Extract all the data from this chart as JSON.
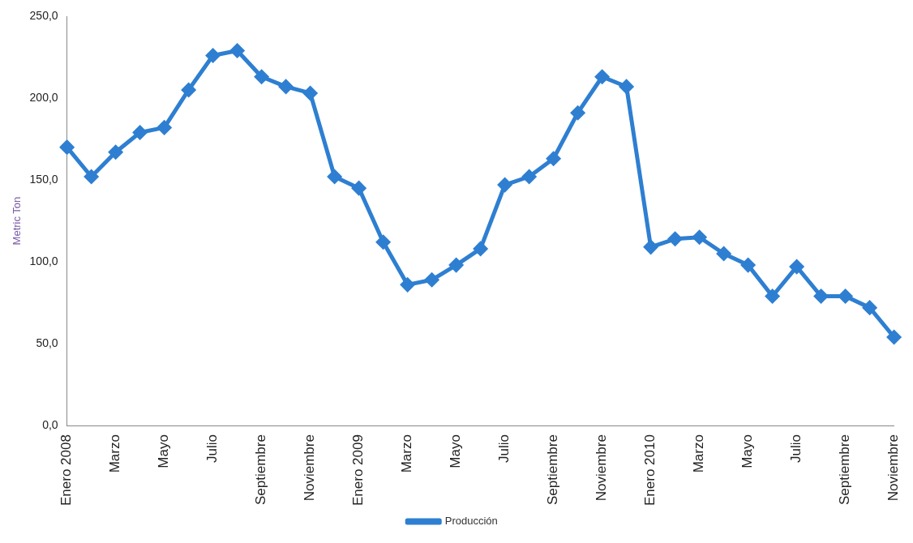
{
  "chart_data": {
    "type": "line",
    "ylabel": "Metric Ton",
    "categories": [
      "Enero 2008",
      null,
      "Marzo",
      null,
      "Mayo",
      null,
      "Julio",
      null,
      "Septiembre",
      null,
      "Noviembre",
      null,
      "Enero 2009",
      null,
      "Marzo",
      null,
      "Mayo",
      null,
      "Julio",
      null,
      "Septiembre",
      null,
      "Noviembre",
      null,
      "Enero 2010",
      null,
      "Marzo",
      null,
      "Mayo",
      null,
      "Julio",
      null,
      "Septiembre",
      null,
      "Noviembre"
    ],
    "series": [
      {
        "name": "Producción",
        "color": "#2e7fd1",
        "values": [
          170,
          152,
          167,
          179,
          182,
          205,
          226,
          229,
          213,
          207,
          203,
          152,
          145,
          112,
          86,
          89,
          98,
          108,
          147,
          152,
          163,
          191,
          213,
          207,
          109,
          114,
          115,
          105,
          98,
          79,
          97,
          79,
          79,
          72,
          54
        ]
      }
    ],
    "ylim": [
      0,
      250
    ],
    "yticks": [
      {
        "value": 0,
        "label": "0,0"
      },
      {
        "value": 50,
        "label": "50,0"
      },
      {
        "value": 100,
        "label": "100,0"
      },
      {
        "value": 150,
        "label": "150,0"
      },
      {
        "value": 200,
        "label": "200,0"
      },
      {
        "value": 250,
        "label": "250,0"
      }
    ],
    "grid": false,
    "legend": "bottom",
    "marker": "diamond",
    "line_style": "solid"
  }
}
